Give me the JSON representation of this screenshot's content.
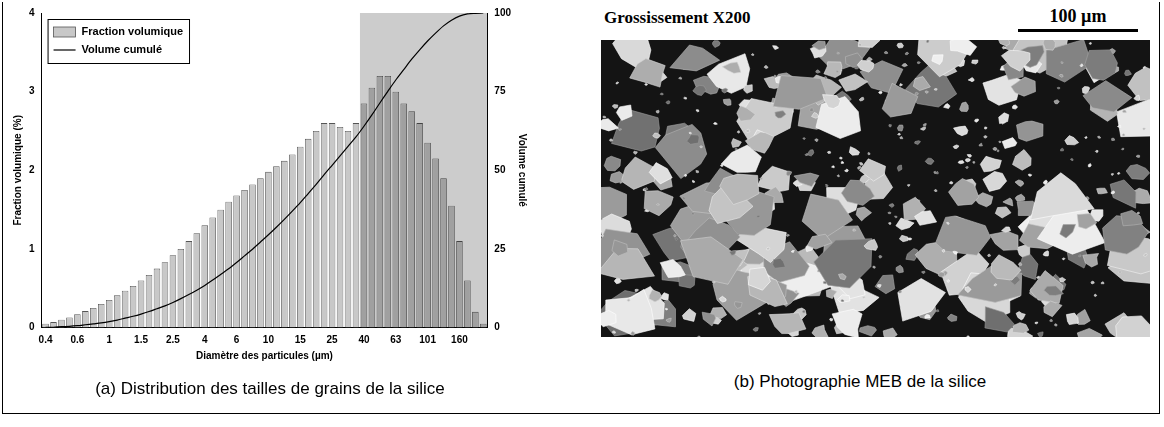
{
  "chart_data": {
    "type": "bar",
    "title": "(a) Distribution des tailles de grains de la silice",
    "x_label": "Diamètre des particules (µm)",
    "y_label": "Fraction volumique (%)",
    "y2_label": "Volume cumulé",
    "categories": [
      "0.4",
      null,
      null,
      null,
      "0.6",
      null,
      null,
      null,
      "1",
      null,
      null,
      null,
      "1.5",
      null,
      null,
      null,
      "2.5",
      null,
      null,
      null,
      "4",
      null,
      null,
      null,
      "6",
      null,
      null,
      null,
      "10",
      null,
      null,
      null,
      "15",
      null,
      null,
      null,
      "25",
      null,
      null,
      null,
      "40",
      null,
      null,
      null,
      "63",
      null,
      null,
      null,
      "101",
      null,
      null,
      null,
      "160",
      null,
      null,
      null
    ],
    "series": [
      {
        "name": "Fraction volumique",
        "type": "bar",
        "color": "#c8c8c8",
        "values": [
          0.05,
          0.07,
          0.1,
          0.13,
          0.17,
          0.21,
          0.25,
          0.3,
          0.35,
          0.41,
          0.47,
          0.53,
          0.6,
          0.67,
          0.75,
          0.83,
          0.92,
          1.0,
          1.1,
          1.2,
          1.3,
          1.4,
          1.5,
          1.6,
          1.68,
          1.75,
          1.82,
          1.9,
          1.98,
          2.05,
          2.12,
          2.2,
          2.3,
          2.4,
          2.5,
          2.6,
          2.6,
          2.55,
          2.5,
          2.6,
          2.85,
          3.05,
          3.2,
          3.2,
          3.0,
          2.85,
          2.75,
          2.6,
          2.35,
          2.15,
          1.9,
          1.55,
          1.1,
          0.6,
          0.2,
          0.05
        ]
      },
      {
        "name": "Volume cumulé",
        "type": "line",
        "color": "#000000",
        "axis": "y2",
        "values": [
          0.1,
          0.1,
          0.3,
          0.4,
          0.6,
          0.9,
          1.2,
          1.5,
          1.9,
          2.4,
          3.0,
          3.6,
          4.3,
          5.1,
          6.0,
          6.9,
          8.0,
          9.2,
          10.5,
          11.9,
          13.4,
          15.1,
          16.9,
          18.7,
          20.7,
          22.8,
          24.9,
          27.2,
          29.5,
          31.9,
          34.4,
          37.0,
          39.7,
          42.6,
          45.5,
          48.6,
          51.6,
          54.6,
          57.6,
          60.6,
          64.0,
          67.6,
          71.4,
          75.1,
          78.7,
          82.0,
          85.3,
          88.3,
          91.1,
          93.6,
          95.9,
          97.7,
          99.0,
          99.7,
          99.9,
          100
        ]
      }
    ],
    "ylim": [
      0,
      4
    ],
    "yticks": [
      0,
      1,
      2,
      3,
      4
    ],
    "y2lim": [
      0,
      100
    ],
    "y2ticks": [
      0,
      25,
      50,
      75,
      100
    ],
    "grid": false,
    "legend": "upper left",
    "shaded_from": 40
  },
  "photo": {
    "caption": "(b) Photographie MEB de la silice",
    "magnification": "Grossissement X200",
    "scale_bar": "100 µm"
  }
}
